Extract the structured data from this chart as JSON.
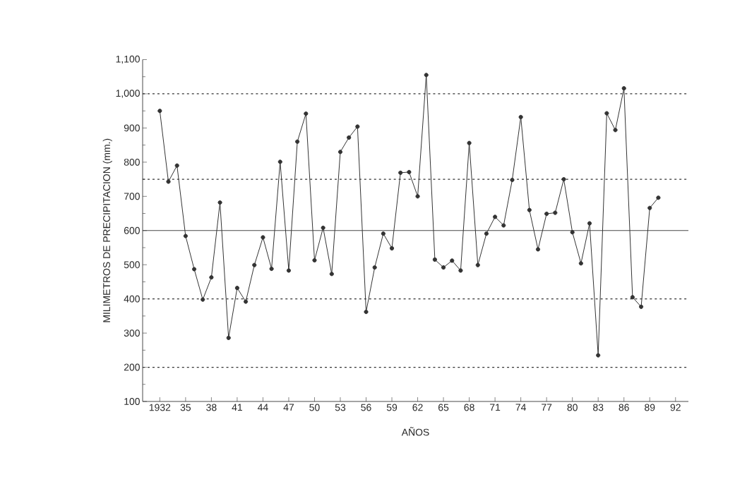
{
  "chart_data": {
    "type": "line",
    "xlabel": "AÑOS",
    "ylabel": "MILIMETROS DE PRECIPITACION (mm.)",
    "x": [
      1932,
      1933,
      1934,
      1935,
      1936,
      1937,
      1938,
      1939,
      1940,
      1941,
      1942,
      1943,
      1944,
      1945,
      1946,
      1947,
      1948,
      1949,
      1950,
      1951,
      1952,
      1953,
      1954,
      1955,
      1956,
      1957,
      1958,
      1959,
      1960,
      1961,
      1962,
      1963,
      1964,
      1965,
      1966,
      1967,
      1968,
      1969,
      1970,
      1971,
      1972,
      1973,
      1974,
      1975,
      1976,
      1977,
      1978,
      1979,
      1980,
      1981,
      1982,
      1983,
      1984,
      1985,
      1986,
      1987,
      1988,
      1989,
      1990
    ],
    "series": [
      {
        "color": "#333333",
        "values": [
          950,
          743,
          790,
          584,
          487,
          398,
          463,
          682,
          286,
          432,
          392,
          499,
          580,
          488,
          801,
          483,
          860,
          942,
          513,
          608,
          473,
          830,
          872,
          904,
          362,
          492,
          591,
          548,
          769,
          771,
          700,
          1055,
          515,
          492,
          512,
          483,
          856,
          499,
          591,
          640,
          615,
          748,
          932,
          660,
          545,
          649,
          652,
          750,
          595,
          504,
          621,
          235,
          943,
          894,
          1016,
          405,
          377,
          666,
          696
        ]
      }
    ],
    "marker": "circle",
    "line_style": "solid",
    "grid": false,
    "xlim": [
      1930,
      1993.5
    ],
    "ylim": [
      100,
      1100
    ],
    "xticks": [
      {
        "value": 1932,
        "label": "1932"
      },
      {
        "value": 1935,
        "label": "35"
      },
      {
        "value": 1938,
        "label": "38"
      },
      {
        "value": 1941,
        "label": "41"
      },
      {
        "value": 1944,
        "label": "44"
      },
      {
        "value": 1947,
        "label": "47"
      },
      {
        "value": 1950,
        "label": "50"
      },
      {
        "value": 1953,
        "label": "53"
      },
      {
        "value": 1956,
        "label": "56"
      },
      {
        "value": 1959,
        "label": "59"
      },
      {
        "value": 1962,
        "label": "62"
      },
      {
        "value": 1965,
        "label": "65"
      },
      {
        "value": 1968,
        "label": "68"
      },
      {
        "value": 1971,
        "label": "71"
      },
      {
        "value": 1974,
        "label": "74"
      },
      {
        "value": 1977,
        "label": "77"
      },
      {
        "value": 1980,
        "label": "80"
      },
      {
        "value": 1983,
        "label": "83"
      },
      {
        "value": 1986,
        "label": "86"
      },
      {
        "value": 1989,
        "label": "89"
      },
      {
        "value": 1992,
        "label": "92"
      }
    ],
    "yticks": [
      100,
      200,
      300,
      400,
      500,
      600,
      700,
      800,
      900,
      {
        "value": 1000,
        "label": "1,000"
      },
      {
        "value": 1100,
        "label": "1,100"
      }
    ],
    "ref_lines": [
      {
        "axis": "y",
        "value": 600,
        "line_style": "solid"
      },
      {
        "axis": "y",
        "value": 1000,
        "line_style": "dashed"
      },
      {
        "axis": "y",
        "value": 750,
        "line_style": "dashed"
      },
      {
        "axis": "y",
        "value": 400,
        "line_style": "dashed"
      },
      {
        "axis": "y",
        "value": 200,
        "line_style": "dashed"
      }
    ]
  }
}
